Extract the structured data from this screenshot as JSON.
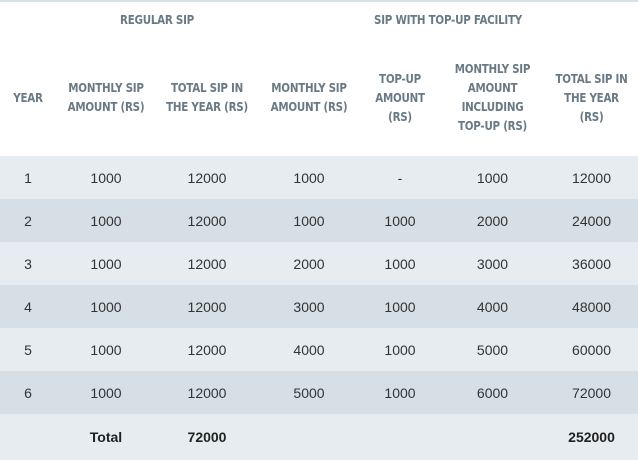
{
  "headers": {
    "group_regular": "Regular SIP",
    "group_topup": "SIP with Top-Up Facility",
    "year": "Year",
    "reg_monthly": "Monthly SIP Amount (Rs)",
    "reg_total": "Total SIP in the Year (Rs)",
    "top_monthly": "Monthly SIP Amount (Rs)",
    "top_amount": "Top-up Amount (Rs)",
    "top_incl": "Monthly SIP Amount Including Top-up (Rs)",
    "top_total": "Total SIP in the Year (Rs)"
  },
  "rows": [
    {
      "year": "1",
      "reg_monthly": "1000",
      "reg_total": "12000",
      "top_monthly": "1000",
      "top_amount": "-",
      "top_incl": "1000",
      "top_total": "12000"
    },
    {
      "year": "2",
      "reg_monthly": "1000",
      "reg_total": "12000",
      "top_monthly": "1000",
      "top_amount": "1000",
      "top_incl": "2000",
      "top_total": "24000"
    },
    {
      "year": "3",
      "reg_monthly": "1000",
      "reg_total": "12000",
      "top_monthly": "2000",
      "top_amount": "1000",
      "top_incl": "3000",
      "top_total": "36000"
    },
    {
      "year": "4",
      "reg_monthly": "1000",
      "reg_total": "12000",
      "top_monthly": "3000",
      "top_amount": "1000",
      "top_incl": "4000",
      "top_total": "48000"
    },
    {
      "year": "5",
      "reg_monthly": "1000",
      "reg_total": "12000",
      "top_monthly": "4000",
      "top_amount": "1000",
      "top_incl": "5000",
      "top_total": "60000"
    },
    {
      "year": "6",
      "reg_monthly": "1000",
      "reg_total": "12000",
      "top_monthly": "5000",
      "top_amount": "1000",
      "top_incl": "6000",
      "top_total": "72000"
    }
  ],
  "totals": {
    "label": "Total",
    "reg_total": "72000",
    "top_total": "252000"
  }
}
